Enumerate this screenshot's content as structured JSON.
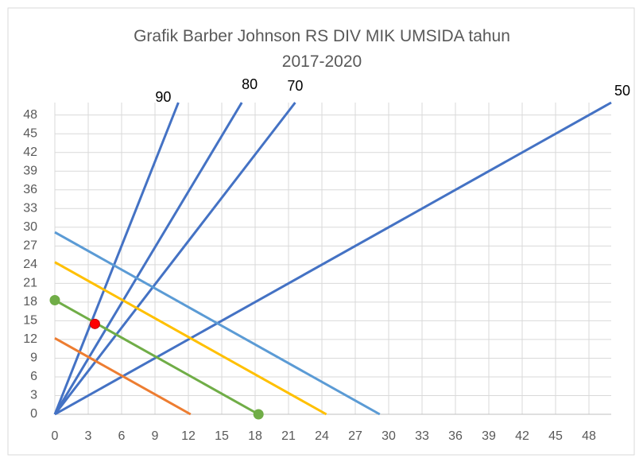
{
  "chart_data": {
    "type": "scatter",
    "title": "Grafik Barber Johnson RS DIV MIK UMSIDA tahun 2017-2020",
    "xlim": [
      0,
      50
    ],
    "ylim": [
      0,
      50
    ],
    "xticks": [
      0,
      3,
      6,
      9,
      12,
      15,
      18,
      21,
      24,
      27,
      30,
      33,
      36,
      39,
      42,
      45,
      48
    ],
    "yticks": [
      0,
      3,
      6,
      9,
      12,
      15,
      18,
      21,
      24,
      27,
      30,
      33,
      36,
      39,
      42,
      45,
      48
    ],
    "grid": true,
    "series": [
      {
        "label": "90",
        "color": "#4472c4",
        "x": [
          0,
          11.1
        ],
        "values": [
          0,
          50
        ],
        "markers": false
      },
      {
        "label": "80",
        "color": "#4472c4",
        "x": [
          0,
          16.8
        ],
        "values": [
          0,
          50
        ],
        "markers": false
      },
      {
        "label": "70",
        "color": "#4472c4",
        "x": [
          0,
          21.6
        ],
        "values": [
          0,
          50
        ],
        "markers": false
      },
      {
        "label": "50",
        "color": "#4472c4",
        "x": [
          0,
          50
        ],
        "values": [
          0,
          50
        ],
        "markers": false
      },
      {
        "color": "#5b9bd5",
        "x": [
          0,
          29.2
        ],
        "values": [
          29.2,
          0
        ],
        "markers": false
      },
      {
        "color": "#ffc000",
        "x": [
          0,
          24.4
        ],
        "values": [
          24.4,
          0
        ],
        "markers": false
      },
      {
        "color": "#70ad47",
        "x": [
          0,
          18.3
        ],
        "values": [
          18.3,
          0
        ],
        "markers": true
      },
      {
        "color": "#ed7d31",
        "x": [
          0,
          12.2
        ],
        "values": [
          12.2,
          0
        ],
        "markers": false
      },
      {
        "color": "#ff0000",
        "x": [
          3.6
        ],
        "values": [
          14.5
        ],
        "markers": true
      }
    ]
  }
}
